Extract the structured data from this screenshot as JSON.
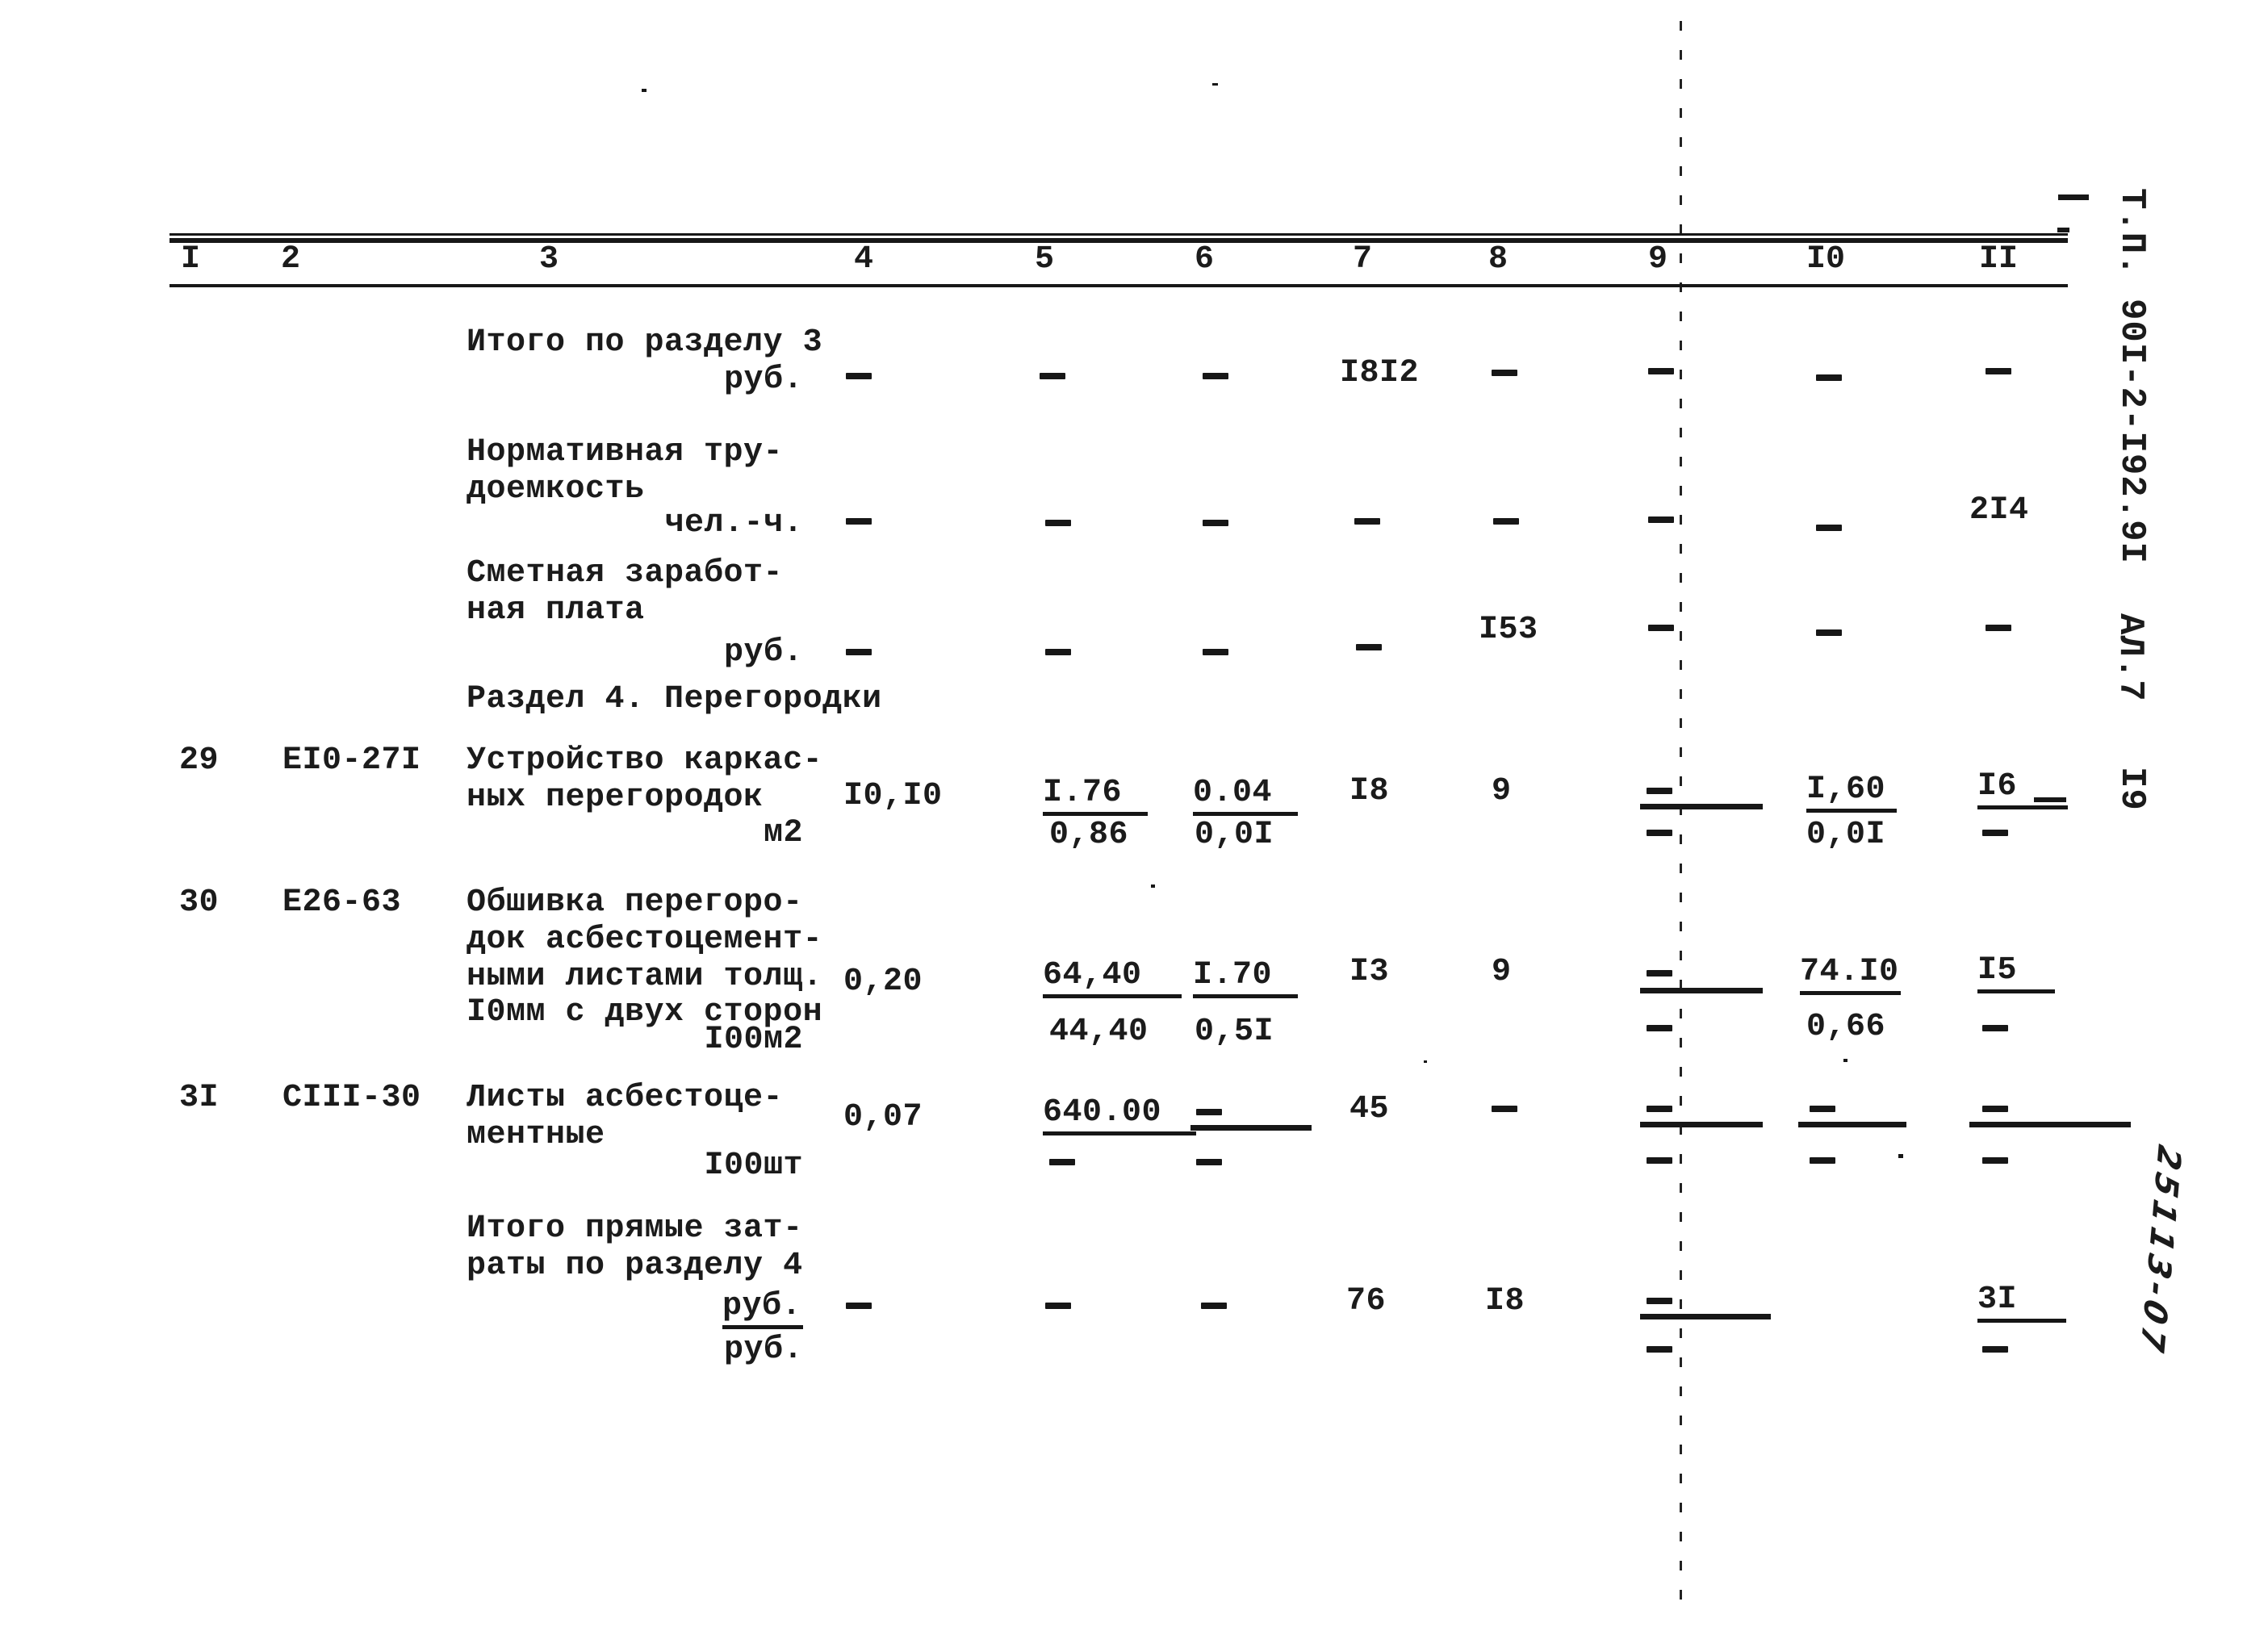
{
  "document": {
    "kind": "typewritten-estimate-table-scan",
    "paper_color": "#ffffff",
    "ink_color": "#1b1b1b"
  },
  "header": {
    "column_numbers": [
      "I",
      "2",
      "3",
      "4",
      "5",
      "6",
      "7",
      "8",
      "9",
      "I0",
      "II"
    ]
  },
  "margin": {
    "doc_code": "Т.П. 90I-2-I92.9I",
    "sheet_label": "АЛ.7",
    "page_number": "I9",
    "handwritten_number": "25113-07"
  },
  "table": {
    "section_title": "Раздел 4. Перегородки",
    "rows": [
      {
        "labels": [
          "Итого по разделу 3"
        ],
        "unit": "руб.",
        "values": {
          "c4": "—",
          "c5": "—",
          "c6": "—",
          "c7": "I8I2",
          "c8": "—",
          "c9": "—",
          "c10": "—",
          "c11": "—"
        }
      },
      {
        "labels": [
          "Нормативная тру-",
          "доемкость"
        ],
        "unit": "чел.-ч.",
        "values": {
          "c4": "—",
          "c5": "—",
          "c6": "—",
          "c7": "—",
          "c8": "—",
          "c9": "—",
          "c10": "—",
          "c11": "2I4"
        }
      },
      {
        "labels": [
          "Сметная заработ-",
          "ная плата"
        ],
        "unit": "руб.",
        "values": {
          "c4": "—",
          "c5": "—",
          "c6": "—",
          "c7": "—",
          "c8": "I53",
          "c9": "—",
          "c10": "—",
          "c11": "—"
        }
      },
      {
        "no": "29",
        "code": "ЕI0-27I",
        "desc": [
          "Устройство каркас-",
          "ных перегородок"
        ],
        "unit": "м2",
        "top": {
          "c4": "I0,I0",
          "c5": "I.76",
          "c6": "0.04",
          "c7": "I8",
          "c8": "9",
          "c9": "—",
          "c10": "I,60",
          "c11": "I6"
        },
        "bottom": {
          "c5": "0,86",
          "c6": "0,0I",
          "c9": "—",
          "c10": "0,0I",
          "c11": "—"
        }
      },
      {
        "no": "30",
        "code": "Е26-63",
        "desc": [
          "Обшивка перегоро-",
          "док асбестоцемент-",
          "ными листами толщ.",
          "I0мм с двух сторон"
        ],
        "unit": "I00м2",
        "top": {
          "c4": "0,20",
          "c5": "64,40",
          "c6": "I.70",
          "c7": "I3",
          "c8": "9",
          "c9": "—",
          "c10": "74.I0",
          "c11": "I5"
        },
        "bottom": {
          "c5": "44,40",
          "c6": "0,5I",
          "c9": "—",
          "c10": "0,66",
          "c11": "—"
        }
      },
      {
        "no": "3I",
        "code": "СIII-30",
        "desc": [
          "Листы асбестоце-",
          "ментные"
        ],
        "unit": "I00шт",
        "top": {
          "c4": "0,07",
          "c5": "640.00",
          "c6": "—",
          "c7": "45",
          "c8": "—",
          "c9": "—",
          "c10": "—",
          "c11": "—"
        },
        "bottom": {
          "c5": "—",
          "c6": "—",
          "c9": "—",
          "c10": "—",
          "c11": "—"
        }
      },
      {
        "labels": [
          "Итого прямые зат-",
          "раты по разделу 4"
        ],
        "unit": "руб.",
        "unit2": "руб.",
        "top": {
          "c4": "—",
          "c5": "—",
          "c6": "—",
          "c7": "76",
          "c8": "I8",
          "c9": "—",
          "c11": "3I"
        },
        "bottom": {
          "c9": "—",
          "c11": "—"
        }
      }
    ]
  }
}
